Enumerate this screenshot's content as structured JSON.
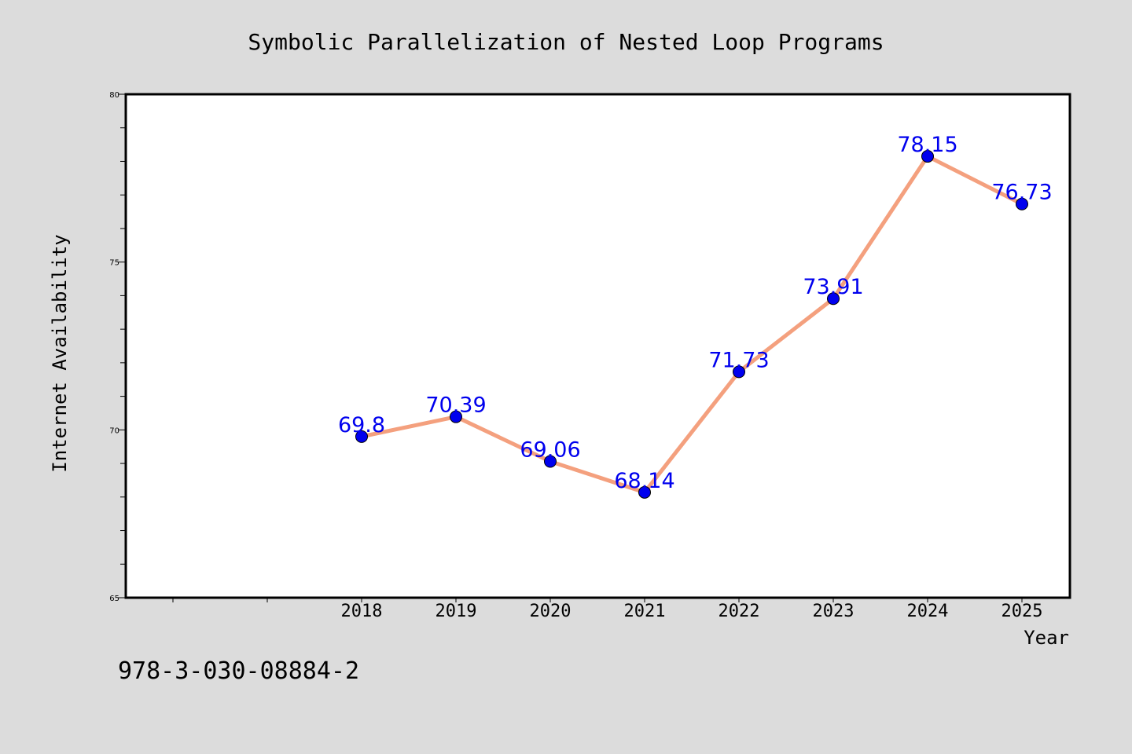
{
  "chart_data": {
    "type": "line",
    "title": "Symbolic Parallelization of Nested Loop Programs",
    "xlabel": "Year",
    "ylabel": "Internet Availability",
    "categories": [
      "2018",
      "2019",
      "2020",
      "2021",
      "2022",
      "2023",
      "2024",
      "2025"
    ],
    "series": [
      {
        "values": [
          69.8,
          70.39,
          69.06,
          68.14,
          71.73,
          73.91,
          78.15,
          76.73
        ],
        "labels": [
          "69.8",
          "70.39",
          "69.06",
          "68.14",
          "71.73",
          "73.91",
          "78.15",
          "76.73"
        ]
      }
    ],
    "ylim": [
      65,
      80
    ],
    "yticks": [
      65,
      70,
      75,
      80
    ],
    "ytick_labels": [
      "65",
      "70",
      "75",
      "80"
    ],
    "grid": false,
    "line_color": "#f4a07e",
    "marker_color": "#0000ee",
    "label_color": "#0000ee"
  },
  "footer": {
    "isbn": "978-3-030-08884-2"
  }
}
